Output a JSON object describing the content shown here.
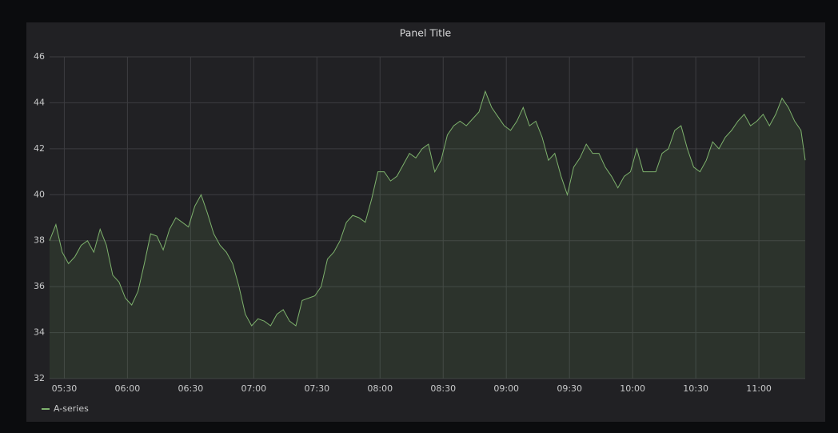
{
  "chart_data": {
    "type": "line",
    "title": "Panel Title",
    "x": [
      "05:23",
      "05:26",
      "05:29",
      "05:32",
      "05:35",
      "05:38",
      "05:41",
      "05:44",
      "05:47",
      "05:50",
      "05:53",
      "05:56",
      "05:59",
      "06:02",
      "06:05",
      "06:08",
      "06:11",
      "06:14",
      "06:17",
      "06:20",
      "06:23",
      "06:26",
      "06:29",
      "06:32",
      "06:35",
      "06:38",
      "06:41",
      "06:44",
      "06:47",
      "06:50",
      "06:53",
      "06:56",
      "06:59",
      "07:02",
      "07:05",
      "07:08",
      "07:11",
      "07:14",
      "07:17",
      "07:20",
      "07:23",
      "07:26",
      "07:29",
      "07:32",
      "07:35",
      "07:38",
      "07:41",
      "07:44",
      "07:47",
      "07:50",
      "07:53",
      "07:56",
      "07:59",
      "08:02",
      "08:05",
      "08:08",
      "08:11",
      "08:14",
      "08:17",
      "08:20",
      "08:23",
      "08:26",
      "08:29",
      "08:32",
      "08:35",
      "08:38",
      "08:41",
      "08:44",
      "08:47",
      "08:50",
      "08:53",
      "08:56",
      "08:59",
      "09:02",
      "09:05",
      "09:08",
      "09:11",
      "09:14",
      "09:17",
      "09:20",
      "09:23",
      "09:26",
      "09:29",
      "09:32",
      "09:35",
      "09:38",
      "09:41",
      "09:44",
      "09:47",
      "09:50",
      "09:53",
      "09:56",
      "09:59",
      "10:02",
      "10:05",
      "10:08",
      "10:11",
      "10:14",
      "10:17",
      "10:20",
      "10:23",
      "10:26",
      "10:29",
      "10:32",
      "10:35",
      "10:38",
      "10:41",
      "10:44",
      "10:47",
      "10:50",
      "10:53",
      "10:56",
      "10:59",
      "11:02",
      "11:05",
      "11:08",
      "11:11",
      "11:14",
      "11:17",
      "11:20",
      "11:22"
    ],
    "series": [
      {
        "name": "A-series",
        "color": "#7eb26d",
        "values": [
          38,
          38.7,
          37.5,
          37,
          37.3,
          37.8,
          38,
          37.5,
          38.5,
          37.8,
          36.5,
          36.2,
          35.5,
          35.2,
          35.8,
          37,
          38.3,
          38.2,
          37.6,
          38.5,
          39,
          38.8,
          38.6,
          39.5,
          40,
          39.2,
          38.3,
          37.8,
          37.5,
          37,
          36,
          34.8,
          34.3,
          34.6,
          34.5,
          34.3,
          34.8,
          35,
          34.5,
          34.3,
          35.4,
          35.5,
          35.6,
          36,
          37.2,
          37.5,
          38,
          38.8,
          39.1,
          39,
          38.8,
          39.8,
          41,
          41,
          40.6,
          40.8,
          41.3,
          41.8,
          41.6,
          42,
          42.2,
          41,
          41.5,
          42.6,
          43,
          43.2,
          43,
          43.3,
          43.6,
          44.5,
          43.8,
          43.4,
          43,
          42.8,
          43.2,
          43.8,
          43,
          43.2,
          42.5,
          41.5,
          41.8,
          40.8,
          40,
          41.2,
          41.6,
          42.2,
          41.8,
          41.8,
          41.2,
          40.8,
          40.3,
          40.8,
          41,
          42,
          41,
          41,
          41,
          41.8,
          42,
          42.8,
          43,
          42,
          41.2,
          41,
          41.5,
          42.3,
          42,
          42.5,
          42.8,
          43.2,
          43.5,
          43,
          43.2,
          43.5,
          43,
          43.5,
          44.2,
          43.8,
          43.2,
          42.8,
          41.5
        ]
      }
    ],
    "xlim": [
      "05:23",
      "11:22"
    ],
    "xticks": [
      "05:30",
      "06:00",
      "06:30",
      "07:00",
      "07:30",
      "08:00",
      "08:30",
      "09:00",
      "09:30",
      "10:00",
      "10:30",
      "11:00"
    ],
    "ylim": [
      32,
      46
    ],
    "yticks": [
      32,
      34,
      36,
      38,
      40,
      42,
      44,
      46
    ],
    "grid": true
  }
}
